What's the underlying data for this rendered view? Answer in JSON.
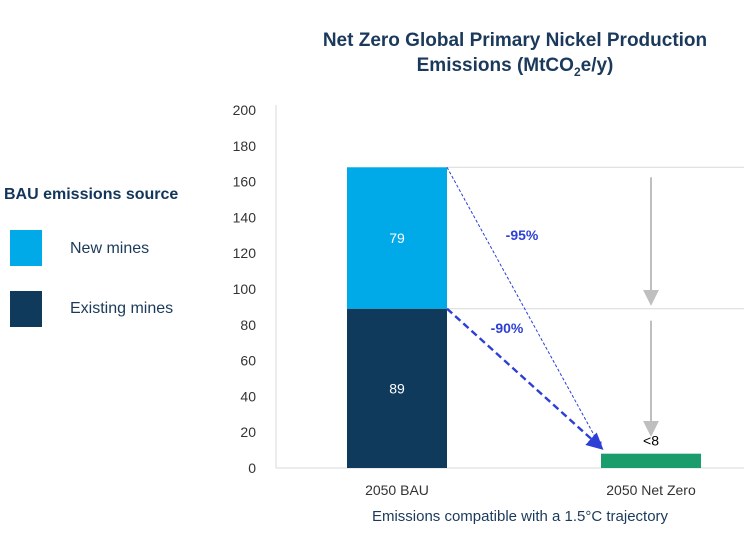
{
  "title": {
    "line1": "Net Zero Global Primary Nickel Production",
    "line2_prefix": "Emissions (MtCO",
    "line2_sub": "2",
    "line2_suffix": "e/y)"
  },
  "legend": {
    "title": "BAU emissions source",
    "items": [
      {
        "label": "New mines",
        "color": "#00a9e8"
      },
      {
        "label": "Existing mines",
        "color": "#0f3a5c"
      }
    ]
  },
  "chart_data": {
    "type": "bar",
    "stacked": true,
    "categories": [
      "2050 BAU",
      "2050 Net Zero"
    ],
    "series": [
      {
        "name": "Existing mines",
        "values": [
          89,
          null
        ],
        "data_labels": [
          "89",
          ""
        ],
        "color": "#0f3a5c"
      },
      {
        "name": "New mines",
        "values": [
          79,
          null
        ],
        "data_labels": [
          "79",
          ""
        ],
        "color": "#00a9e8"
      },
      {
        "name": "",
        "values": [
          null,
          8
        ],
        "data_labels": [
          "",
          "<8"
        ],
        "color": "#1a9c6c"
      }
    ],
    "ylim": [
      0,
      200
    ],
    "yticks": [
      0,
      20,
      40,
      60,
      80,
      100,
      120,
      140,
      160,
      180,
      200
    ],
    "xlabel": "Emissions compatible with a 1.5°C trajectory",
    "ylabel": "",
    "annotations": [
      {
        "text": "-95%",
        "color": "#2d3fd6"
      },
      {
        "text": "-90%",
        "color": "#2d3fd6"
      }
    ]
  }
}
